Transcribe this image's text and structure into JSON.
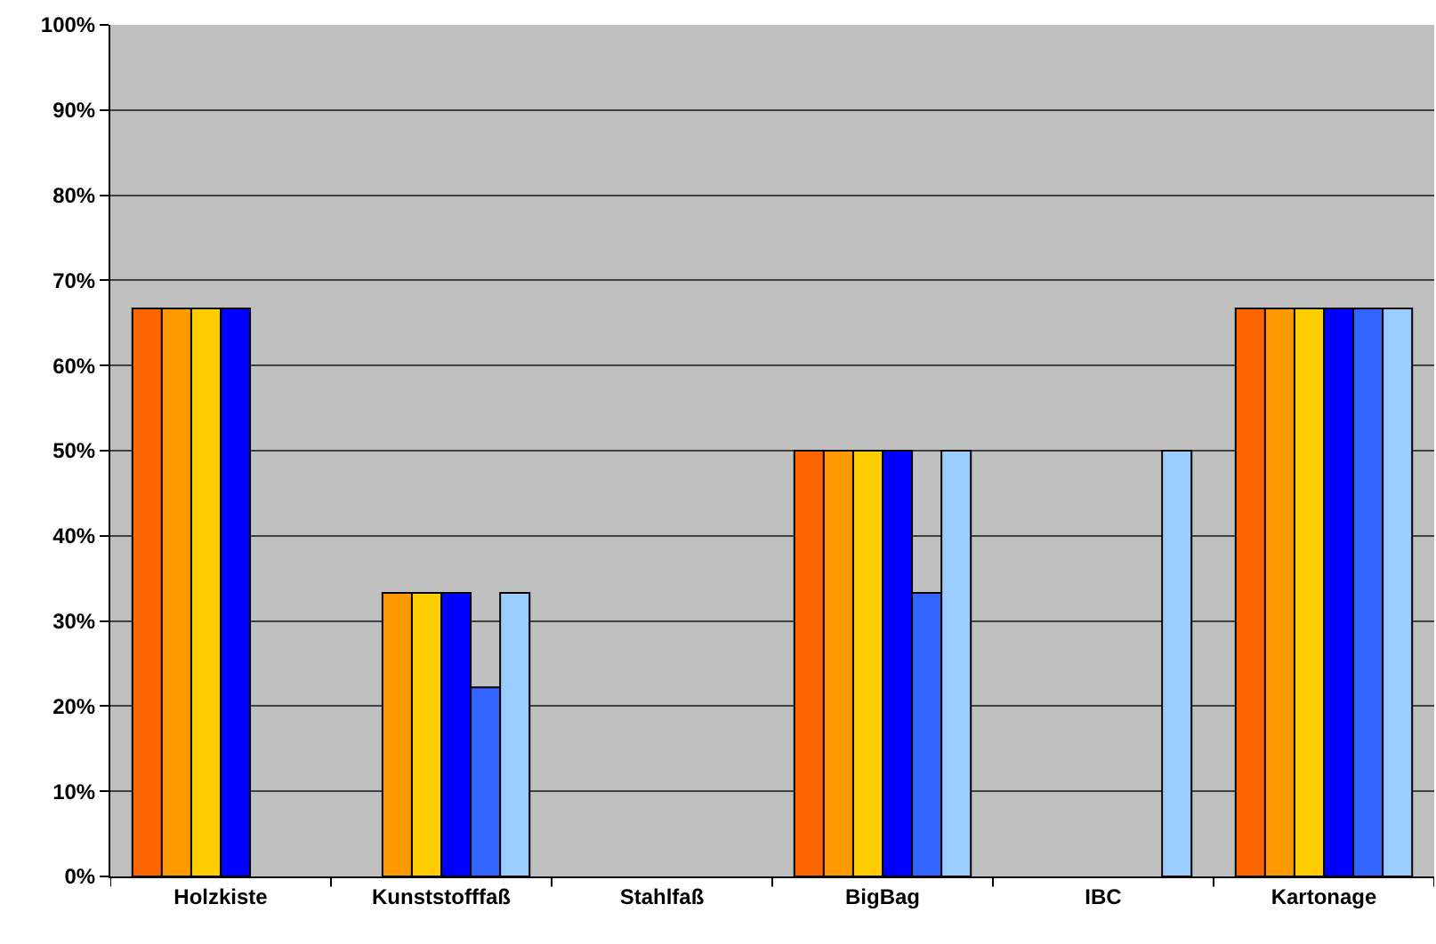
{
  "chart_data": {
    "type": "bar",
    "categories": [
      "Holzkiste",
      "Kunststofffaß",
      "Stahlfaß",
      "BigBag",
      "IBC",
      "Kartonage"
    ],
    "series": [
      {
        "color": "#ff6600",
        "values": [
          66.7,
          null,
          null,
          50,
          null,
          66.7
        ]
      },
      {
        "color": "#ff9900",
        "values": [
          66.7,
          33.3,
          null,
          50,
          null,
          66.7
        ]
      },
      {
        "color": "#ffcc00",
        "values": [
          66.7,
          33.3,
          null,
          50,
          null,
          66.7
        ]
      },
      {
        "color": "#0000ff",
        "values": [
          66.7,
          33.3,
          null,
          50,
          null,
          66.7
        ]
      },
      {
        "color": "#3366ff",
        "values": [
          null,
          22.2,
          null,
          33.3,
          null,
          66.7
        ]
      },
      {
        "color": "#99ccff",
        "values": [
          null,
          33.3,
          null,
          50,
          50,
          66.7
        ]
      }
    ],
    "ylim": [
      0,
      100
    ],
    "yticks": [
      {
        "value": 0,
        "label": "0%"
      },
      {
        "value": 10,
        "label": "10%"
      },
      {
        "value": 20,
        "label": "20%"
      },
      {
        "value": 30,
        "label": "30%"
      },
      {
        "value": 40,
        "label": "40%"
      },
      {
        "value": 50,
        "label": "50%"
      },
      {
        "value": 60,
        "label": "60%"
      },
      {
        "value": 70,
        "label": "70%"
      },
      {
        "value": 80,
        "label": "80%"
      },
      {
        "value": 90,
        "label": "90%"
      },
      {
        "value": 100,
        "label": "100%"
      }
    ],
    "grid": "y"
  }
}
